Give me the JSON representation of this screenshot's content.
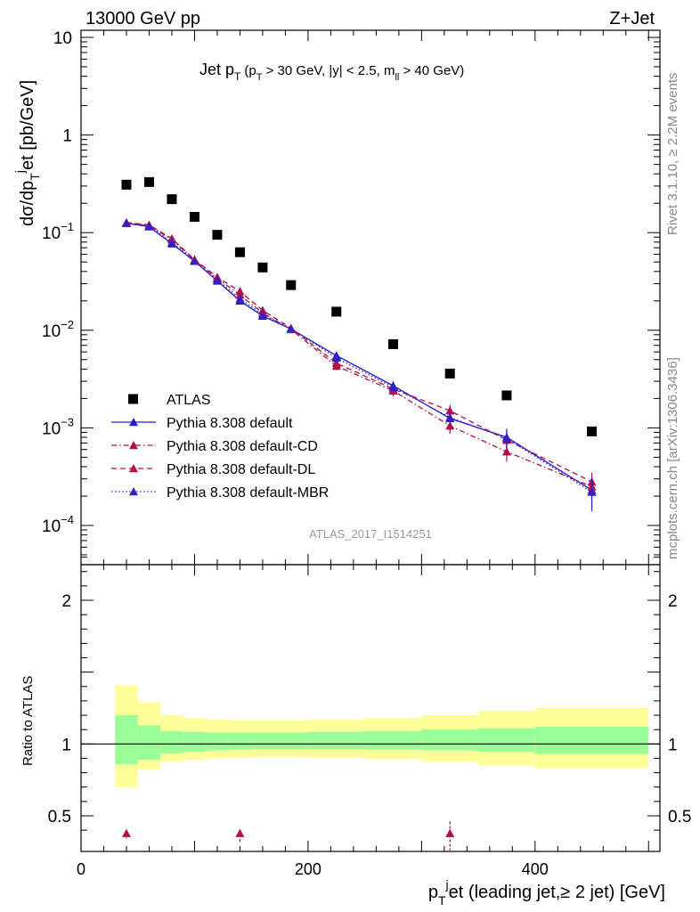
{
  "header": {
    "left": "13000 GeV pp",
    "right": "Z+Jet"
  },
  "main_title": {
    "base": "Jet p",
    "sub": "T",
    "cond_pre": "(p",
    "cond_sub": "T",
    "cond_mid": " > 30 GeV, |y| < 2.5, m",
    "cond_sub2": "ll",
    "cond_post": " > 40 GeV)"
  },
  "side_labels": {
    "rivet": "Rivet 3.1.10, ≥ 2.2M events",
    "mcplots": "mcplots.cern.ch [arXiv:1306.3436]"
  },
  "analysis_id": "ATLAS_2017_I1514251",
  "ylabel_main": "dσ/dp_T^jet [pb/GeV]",
  "ylabel_ratio": "Ratio to ATLAS",
  "xlabel": "p_T^jet (leading jet,≥ 2 jet) [GeV]",
  "legend": [
    {
      "label": "ATLAS",
      "style": "data"
    },
    {
      "label": "Pythia 8.308 default",
      "style": "solid",
      "color": "#1f1fd0"
    },
    {
      "label": "Pythia 8.308 default-CD",
      "style": "dashdot",
      "color": "#b0104a"
    },
    {
      "label": "Pythia 8.308 default-DL",
      "style": "dash",
      "color": "#b0104a"
    },
    {
      "label": "Pythia 8.308 default-MBR",
      "style": "dot",
      "color": "#3a1fc0"
    }
  ],
  "colors": {
    "data": "#000000",
    "default": "#1f1fd0",
    "cd": "#b0104a",
    "dl": "#b0104a",
    "mbr": "#3a1fc0",
    "band_inner": "#99ff99",
    "band_outer": "#ffff99"
  },
  "chart_data": [
    {
      "type": "scatter",
      "title": "Jet pT (pT > 30 GeV, |y| < 2.5, mll > 40 GeV)",
      "xlabel": "",
      "ylabel": "dσ/dp_T^jet [pb/GeV]",
      "xlim": [
        0,
        510
      ],
      "ylim": [
        3e-05,
        13
      ],
      "yscale": "log",
      "yticks": [
        {
          "v": 0.0001,
          "base": "10",
          "exp": "−4"
        },
        {
          "v": 0.001,
          "base": "10",
          "exp": "−3"
        },
        {
          "v": 0.01,
          "base": "10",
          "exp": "−2"
        },
        {
          "v": 0.1,
          "base": "10",
          "exp": "−1"
        },
        {
          "v": 1,
          "base": "1",
          "exp": ""
        },
        {
          "v": 10,
          "base": "10",
          "exp": ""
        }
      ],
      "legend_position": "lower-left",
      "series": [
        {
          "name": "ATLAS",
          "key": "data",
          "x": [
            40,
            60,
            80,
            100,
            120,
            140,
            160,
            185,
            225,
            275,
            325,
            375,
            450
          ],
          "y": [
            0.31,
            0.33,
            0.22,
            0.145,
            0.095,
            0.063,
            0.044,
            0.029,
            0.0155,
            0.0072,
            0.0036,
            0.00215,
            0.00092
          ]
        },
        {
          "name": "Pythia 8.308 default",
          "key": "default",
          "x": [
            40,
            60,
            80,
            100,
            120,
            140,
            160,
            185,
            225,
            275,
            325,
            375,
            450
          ],
          "y": [
            0.125,
            0.115,
            0.077,
            0.051,
            0.032,
            0.02,
            0.014,
            0.0103,
            0.0055,
            0.0027,
            0.00125,
            0.0008,
            0.00023
          ],
          "err_low": [
            0.005,
            0.004,
            0.003,
            0.002,
            0.0012,
            0.0008,
            0.0006,
            0.0005,
            0.0004,
            0.0003,
            0.00018,
            0.00018,
            8e-05
          ],
          "err_high": [
            0.005,
            0.004,
            0.003,
            0.002,
            0.0012,
            0.0008,
            0.0006,
            0.0005,
            0.0004,
            0.0003,
            0.00018,
            0.00018,
            8e-05
          ]
        },
        {
          "name": "Pythia 8.308 default-CD",
          "key": "cd",
          "x": [
            40,
            60,
            80,
            100,
            120,
            140,
            160,
            185,
            225,
            275,
            325,
            375,
            450
          ],
          "y": [
            0.125,
            0.118,
            0.085,
            0.052,
            0.034,
            0.023,
            0.015,
            0.0102,
            0.0043,
            0.0024,
            0.00105,
            0.00057,
            0.00025
          ],
          "err_low": [
            0.005,
            0.004,
            0.003,
            0.002,
            0.0012,
            0.0008,
            0.0006,
            0.0005,
            0.0004,
            0.0003,
            0.00018,
            0.00012,
            6e-05
          ],
          "err_high": [
            0.005,
            0.004,
            0.003,
            0.002,
            0.0012,
            0.0008,
            0.0006,
            0.0005,
            0.0004,
            0.0003,
            0.00018,
            0.00012,
            6e-05
          ]
        },
        {
          "name": "Pythia 8.308 default-DL",
          "key": "dl",
          "x": [
            40,
            60,
            80,
            100,
            120,
            140,
            160,
            185,
            225,
            275,
            325,
            375,
            450
          ],
          "y": [
            0.127,
            0.12,
            0.087,
            0.053,
            0.035,
            0.025,
            0.016,
            0.0105,
            0.0046,
            0.0025,
            0.0015,
            0.00075,
            0.00028
          ],
          "err_low": [
            0.005,
            0.004,
            0.003,
            0.002,
            0.0012,
            0.0008,
            0.0006,
            0.0005,
            0.0004,
            0.0003,
            0.00022,
            0.00015,
            7e-05
          ],
          "err_high": [
            0.005,
            0.004,
            0.003,
            0.002,
            0.0012,
            0.0008,
            0.0006,
            0.0005,
            0.0004,
            0.0003,
            0.00022,
            0.00015,
            7e-05
          ]
        },
        {
          "name": "Pythia 8.308 default-MBR",
          "key": "mbr",
          "x": [
            40,
            60,
            80,
            100,
            120,
            140,
            160,
            185,
            225,
            275,
            325,
            375,
            450
          ],
          "y": [
            0.126,
            0.117,
            0.08,
            0.051,
            0.033,
            0.021,
            0.0145,
            0.0104,
            0.0052,
            0.0026,
            0.00128,
            0.00078,
            0.00022
          ],
          "err_low": [
            0.005,
            0.004,
            0.003,
            0.002,
            0.0012,
            0.0008,
            0.0006,
            0.0005,
            0.0004,
            0.0003,
            0.00018,
            0.00016,
            8e-05
          ],
          "err_high": [
            0.005,
            0.004,
            0.003,
            0.002,
            0.0012,
            0.0008,
            0.0006,
            0.0005,
            0.0004,
            0.0003,
            0.00018,
            0.00016,
            8e-05
          ]
        }
      ]
    },
    {
      "type": "scatter",
      "title": "",
      "xlabel": "p_T^jet (leading jet,≥ 2 jet) [GeV]",
      "ylabel": "Ratio to ATLAS",
      "xlim": [
        0,
        510
      ],
      "ylim": [
        0.34,
        2.35
      ],
      "xticks": [
        0,
        200,
        400
      ],
      "yticks": [
        0.5,
        1,
        2
      ],
      "reference_line": 1,
      "bands": {
        "edges": [
          30,
          50,
          70,
          90,
          110,
          130,
          150,
          170,
          200,
          250,
          300,
          350,
          400,
          500
        ],
        "inner_low": [
          0.86,
          0.89,
          0.935,
          0.945,
          0.955,
          0.96,
          0.965,
          0.965,
          0.965,
          0.96,
          0.955,
          0.945,
          0.93
        ],
        "inner_high": [
          1.2,
          1.13,
          1.09,
          1.085,
          1.08,
          1.08,
          1.08,
          1.08,
          1.085,
          1.09,
          1.1,
          1.11,
          1.12
        ],
        "outer_low": [
          0.7,
          0.82,
          0.875,
          0.89,
          0.9,
          0.905,
          0.91,
          0.91,
          0.905,
          0.895,
          0.875,
          0.85,
          0.83
        ],
        "outer_high": [
          1.41,
          1.29,
          1.2,
          1.18,
          1.17,
          1.165,
          1.165,
          1.165,
          1.17,
          1.18,
          1.2,
          1.23,
          1.25
        ]
      },
      "markers": [
        {
          "x": 40,
          "y": 0.36,
          "err": 0.02
        },
        {
          "x": 140,
          "y": 0.36,
          "err": 0.04
        },
        {
          "x": 325,
          "y": 0.36,
          "err": 0.1
        }
      ]
    }
  ]
}
